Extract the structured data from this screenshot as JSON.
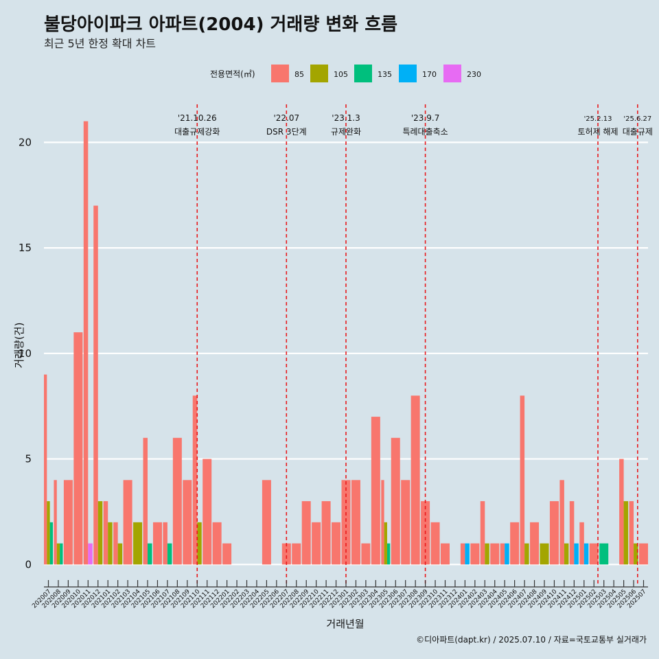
{
  "title": "불당아이파크 아파트(2004) 거래량 변화 흐름",
  "subtitle": "최근 5년 한정 확대 차트",
  "caption": "©디아파트(dapt.kr) / 2025.07.10 / 자료=국토교통부 실거래가",
  "chart_data": {
    "type": "bar",
    "xlabel": "거래년월",
    "ylabel": "거래량(건)",
    "ylim": [
      -0.9,
      21.8
    ],
    "yticks": [
      0,
      5,
      10,
      15,
      20
    ],
    "legend": {
      "title": "전용면적(㎡)",
      "placement": "top"
    },
    "colors": {
      "85": "#f8766d",
      "105": "#a3a500",
      "135": "#00bf7d",
      "170": "#00b0f6",
      "230": "#e76bf3"
    },
    "months": [
      "202007",
      "202008",
      "202009",
      "202010",
      "202011",
      "202012",
      "202101",
      "202102",
      "202103",
      "202104",
      "202105",
      "202106",
      "202107",
      "202108",
      "202109",
      "202110",
      "202111",
      "202112",
      "202201",
      "202202",
      "202203",
      "202204",
      "202205",
      "202206",
      "202207",
      "202208",
      "202209",
      "202210",
      "202211",
      "202212",
      "202301",
      "202302",
      "202303",
      "202304",
      "202305",
      "202306",
      "202307",
      "202308",
      "202309",
      "202310",
      "202311",
      "202312",
      "202401",
      "202402",
      "202403",
      "202404",
      "202405",
      "202406",
      "202407",
      "202408",
      "202409",
      "202410",
      "202411",
      "202412",
      "202501",
      "202502",
      "202503",
      "202504",
      "202505",
      "202506",
      "202507"
    ],
    "series": [
      {
        "name": "85",
        "values": [
          9,
          4,
          4,
          11,
          21,
          17,
          3,
          2,
          4,
          0,
          6,
          2,
          2,
          6,
          4,
          8,
          5,
          2,
          1,
          0,
          0,
          0,
          4,
          0,
          1,
          1,
          3,
          2,
          3,
          2,
          4,
          4,
          1,
          7,
          4,
          6,
          4,
          8,
          3,
          2,
          1,
          0,
          1,
          1,
          3,
          1,
          1,
          2,
          8,
          2,
          0,
          3,
          4,
          3,
          2,
          1,
          0,
          0,
          5,
          3,
          1
        ]
      },
      {
        "name": "105",
        "values": [
          3,
          1,
          0,
          0,
          0,
          3,
          2,
          1,
          0,
          2,
          0,
          0,
          0,
          0,
          0,
          2,
          0,
          0,
          0,
          0,
          0,
          0,
          0,
          0,
          0,
          0,
          0,
          0,
          0,
          0,
          0,
          0,
          0,
          0,
          2,
          0,
          0,
          0,
          0,
          0,
          0,
          0,
          0,
          0,
          1,
          0,
          0,
          0,
          1,
          0,
          1,
          0,
          1,
          0,
          0,
          0,
          0,
          0,
          3,
          1,
          0
        ]
      },
      {
        "name": "135",
        "values": [
          2,
          1,
          0,
          0,
          0,
          0,
          0,
          0,
          0,
          0,
          1,
          0,
          1,
          0,
          0,
          0,
          0,
          0,
          0,
          0,
          0,
          0,
          0,
          0,
          0,
          0,
          0,
          0,
          0,
          0,
          0,
          0,
          0,
          0,
          1,
          0,
          0,
          0,
          0,
          0,
          0,
          0,
          0,
          0,
          0,
          0,
          0,
          0,
          0,
          0,
          0,
          0,
          0,
          0,
          0,
          0,
          1,
          0,
          0,
          0,
          0
        ]
      },
      {
        "name": "170",
        "values": [
          0,
          0,
          0,
          0,
          0,
          0,
          0,
          0,
          0,
          0,
          0,
          0,
          0,
          0,
          0,
          0,
          0,
          0,
          0,
          0,
          0,
          0,
          0,
          0,
          0,
          0,
          0,
          0,
          0,
          0,
          0,
          0,
          0,
          0,
          0,
          0,
          0,
          0,
          0,
          0,
          0,
          0,
          1,
          0,
          0,
          0,
          1,
          0,
          0,
          0,
          0,
          0,
          0,
          1,
          1,
          0,
          0,
          0,
          0,
          0,
          0
        ]
      },
      {
        "name": "230",
        "values": [
          0,
          0,
          0,
          0,
          1,
          0,
          0,
          0,
          0,
          0,
          0,
          0,
          0,
          0,
          0,
          0,
          0,
          0,
          0,
          0,
          0,
          0,
          0,
          0,
          0,
          0,
          0,
          0,
          0,
          0,
          0,
          0,
          0,
          0,
          0,
          0,
          0,
          0,
          0,
          0,
          0,
          0,
          0,
          0,
          0,
          0,
          0,
          0,
          0,
          0,
          0,
          0,
          0,
          0,
          0,
          0,
          0,
          0,
          0,
          0,
          0
        ]
      }
    ],
    "annotations": [
      {
        "month_index": 15.0,
        "date": "'21.10.26",
        "label": "대출규제강화"
      },
      {
        "month_index": 24.0,
        "date": "'22.07",
        "label": "DSR 3단계"
      },
      {
        "month_index": 30.0,
        "date": "'23.1.3",
        "label": "규제완화"
      },
      {
        "month_index": 38.0,
        "date": "'23.9.7",
        "label": "특례대출축소"
      },
      {
        "month_index": 55.4,
        "date": "'25.2.13",
        "label": "토허제 해제"
      },
      {
        "month_index": 59.4,
        "date": "'25.6.27",
        "label": "대출규제"
      }
    ]
  }
}
